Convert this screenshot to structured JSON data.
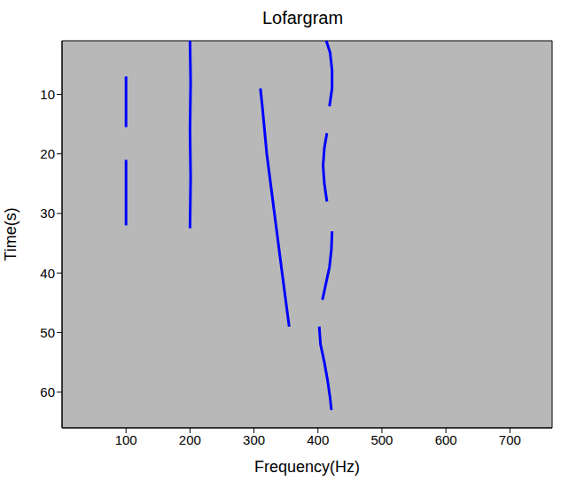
{
  "chart_data": {
    "type": "line",
    "title": "Lofargram",
    "x_label": "Frequency(Hz)",
    "y_label": "Time(s)",
    "xlim": [
      0,
      766
    ],
    "xticks": [
      100,
      200,
      300,
      400,
      500,
      600,
      700
    ],
    "ylim": [
      1,
      66
    ],
    "yticks": [
      10,
      20,
      30,
      40,
      50,
      60
    ],
    "grid": false,
    "series": [
      {
        "color": "#0000ff",
        "x": [
          100,
          100
        ],
        "values": [
          7,
          15.5
        ]
      },
      {
        "color": "#0000ff",
        "x": [
          100,
          100
        ],
        "values": [
          21,
          32
        ]
      },
      {
        "color": "#0000ff",
        "x": [
          200,
          201,
          200,
          201,
          200
        ],
        "values": [
          1,
          8,
          16,
          24,
          32.5
        ]
      },
      {
        "color": "#0000ff",
        "x": [
          310,
          313,
          320,
          332,
          344,
          355
        ],
        "values": [
          9,
          12,
          20,
          30,
          40,
          49
        ]
      },
      {
        "color": "#0000ff",
        "x": [
          413,
          419,
          422,
          422,
          418
        ],
        "values": [
          1,
          3,
          6,
          9,
          12
        ]
      },
      {
        "color": "#0000ff",
        "x": [
          414,
          410,
          408,
          410,
          414
        ],
        "values": [
          16.5,
          19,
          22,
          25,
          28
        ]
      },
      {
        "color": "#0000ff",
        "x": [
          422,
          421,
          418,
          412,
          407
        ],
        "values": [
          33,
          36,
          39,
          42,
          44.5
        ]
      },
      {
        "color": "#0000ff",
        "x": [
          402,
          404,
          410,
          415,
          419,
          421
        ],
        "values": [
          49,
          52,
          55,
          58,
          61,
          63
        ]
      }
    ]
  }
}
